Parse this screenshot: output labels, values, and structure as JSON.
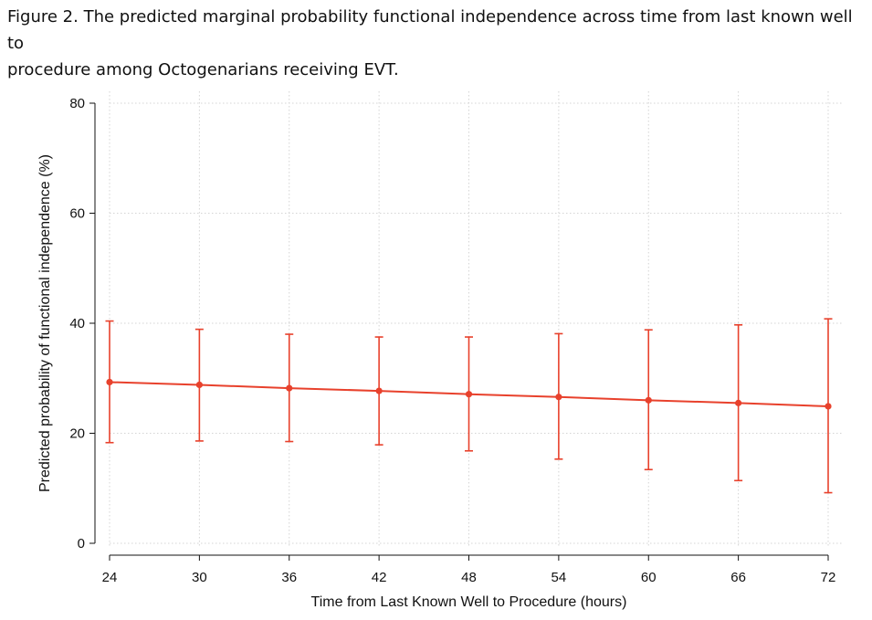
{
  "caption": {
    "line1": "Figure 2. The predicted marginal probability functional independence across time from last known well to",
    "line2": "procedure among Octogenarians receiving EVT."
  },
  "chart_data": {
    "type": "line",
    "title": "Figure 2. The predicted marginal probability functional independence across time from last known well to procedure among Octogenarians receiving EVT.",
    "xlabel": "Time from Last Known Well to Procedure (hours)",
    "ylabel": "Predicted probability of functional independence (%)",
    "x": [
      24,
      30,
      36,
      42,
      48,
      54,
      60,
      66,
      72
    ],
    "xticks": [
      "24",
      "30",
      "36",
      "42",
      "48",
      "54",
      "60",
      "66",
      "72"
    ],
    "yticks": [
      "0",
      "20",
      "40",
      "60",
      "80"
    ],
    "xlim": [
      24,
      72
    ],
    "ylim": [
      0,
      80
    ],
    "grid": true,
    "series": [
      {
        "values": [
          29.3,
          28.8,
          28.2,
          27.7,
          27.1,
          26.6,
          26.0,
          25.5,
          24.9
        ],
        "lower": [
          18.3,
          18.6,
          18.5,
          17.9,
          16.8,
          15.3,
          13.4,
          11.4,
          9.2
        ],
        "upper": [
          40.4,
          38.9,
          38.0,
          37.5,
          37.5,
          38.1,
          38.8,
          39.7,
          40.8
        ],
        "color": "#e8412c"
      }
    ]
  }
}
